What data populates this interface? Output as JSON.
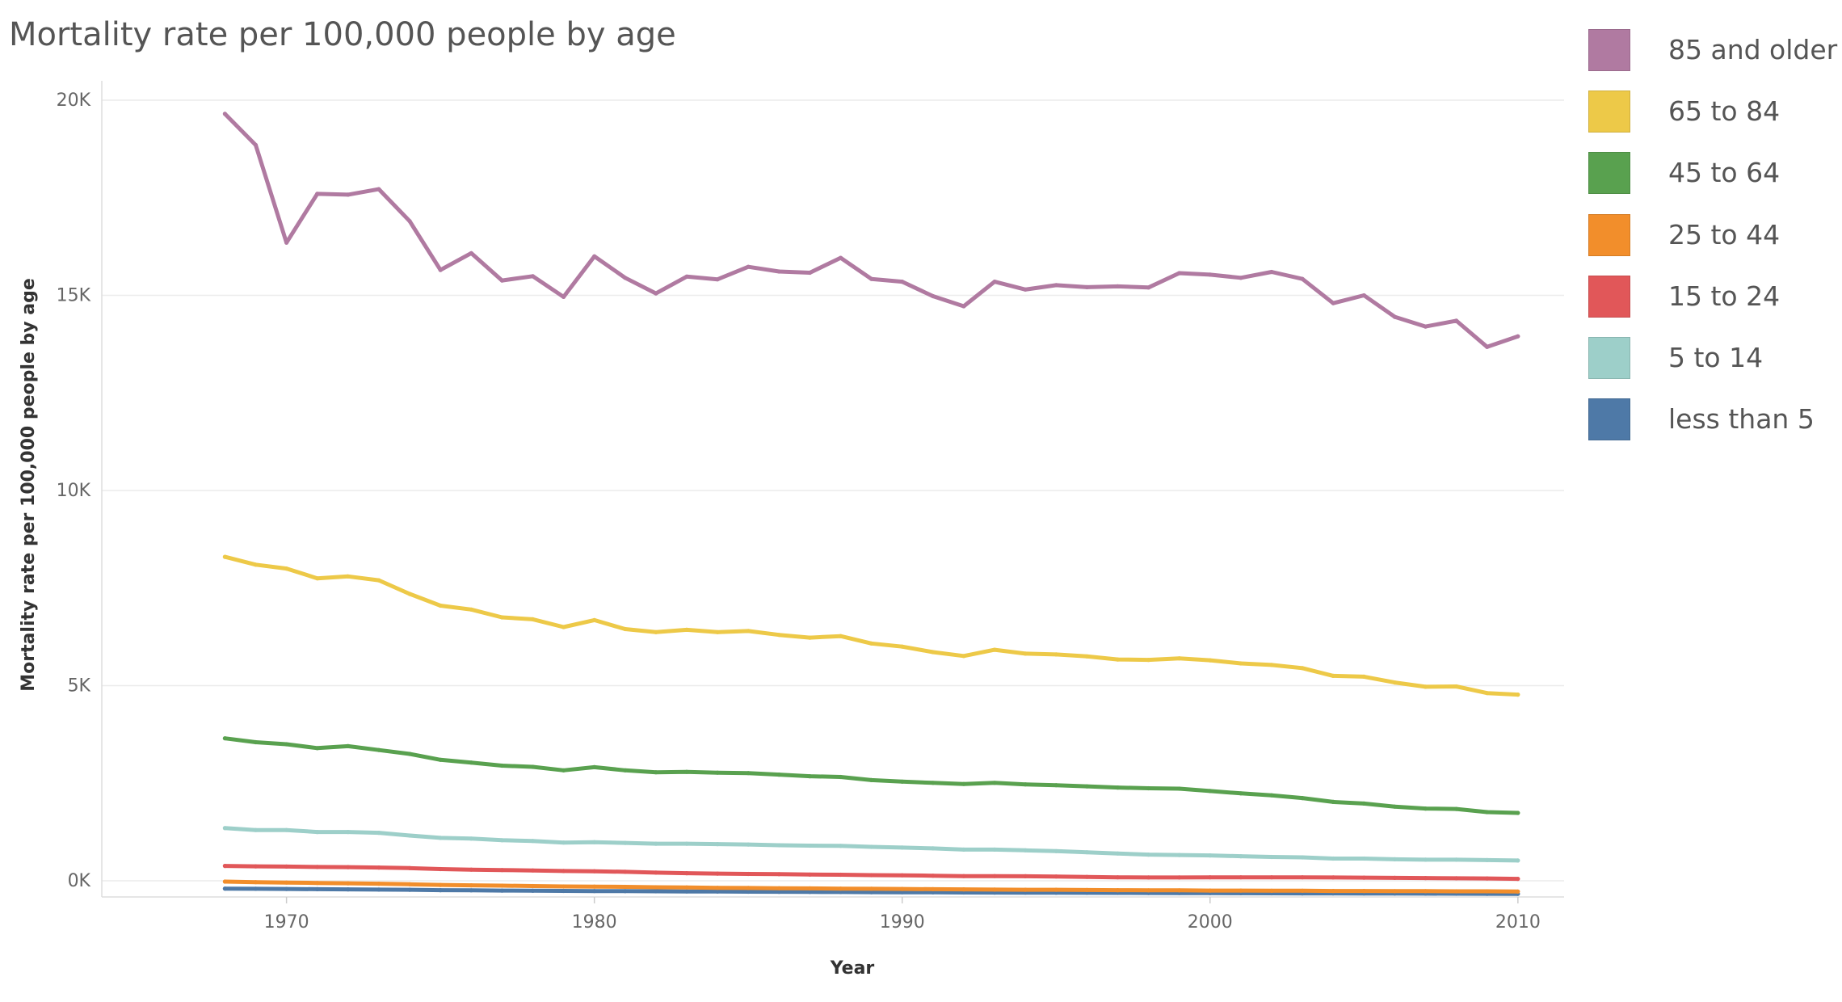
{
  "colors": {
    "85 and older": "#b07aa1",
    "65 to 84": "#edc948",
    "45 to 64": "#59a14f",
    "25 to 44": "#f28e2b",
    "15 to 24": "#e15759",
    "5 to 14": "#9dcfc9",
    "less than 5": "#4e79a7"
  },
  "legend": {
    "items": [
      {
        "label": "85 and older",
        "color": "#b07aa1"
      },
      {
        "label": "65 to 84",
        "color": "#edc948"
      },
      {
        "label": "45 to 64",
        "color": "#59a14f"
      },
      {
        "label": "25 to 44",
        "color": "#f28e2b"
      },
      {
        "label": "15 to 24",
        "color": "#e15759"
      },
      {
        "label": "5 to 14",
        "color": "#9dcfc9"
      },
      {
        "label": "less than 5",
        "color": "#4e79a7"
      }
    ]
  },
  "chart_data": {
    "type": "line",
    "title": "Mortality rate per 100,000 people by age",
    "xlabel": "Year",
    "ylabel": "Mortality rate per 100,000 people by age",
    "xlim": [
      1964,
      2011.5
    ],
    "ylim": [
      -400,
      20000
    ],
    "x_ticks": [
      1970,
      1980,
      1990,
      2000,
      2010
    ],
    "x_tick_labels": [
      "1970",
      "1980",
      "1990",
      "2000",
      "2010"
    ],
    "y_ticks": [
      0,
      5000,
      10000,
      15000,
      20000
    ],
    "y_tick_labels": [
      "0K",
      "5K",
      "10K",
      "15K",
      "20K"
    ],
    "grid": true,
    "legend_position": "right",
    "x": [
      1968,
      1969,
      1970,
      1971,
      1972,
      1973,
      1974,
      1975,
      1976,
      1977,
      1978,
      1979,
      1980,
      1981,
      1982,
      1983,
      1984,
      1985,
      1986,
      1987,
      1988,
      1989,
      1990,
      1991,
      1992,
      1993,
      1994,
      1995,
      1996,
      1997,
      1998,
      1999,
      2000,
      2001,
      2002,
      2003,
      2004,
      2005,
      2006,
      2007,
      2008,
      2009,
      2010
    ],
    "series": [
      {
        "name": "85 and older",
        "values": [
          19650,
          18850,
          16350,
          17600,
          17580,
          17720,
          16900,
          15650,
          16080,
          15380,
          15490,
          14960,
          16000,
          15450,
          15050,
          15480,
          15410,
          15730,
          15610,
          15580,
          15960,
          15420,
          15350,
          14980,
          14720,
          15350,
          15150,
          15260,
          15210,
          15230,
          15200,
          15570,
          15530,
          15450,
          15600,
          15420,
          14800,
          15000,
          14450,
          14200,
          14350,
          13680,
          13950
        ]
      },
      {
        "name": "65 to 84",
        "values": [
          8300,
          8100,
          8000,
          7750,
          7800,
          7700,
          7350,
          7050,
          6950,
          6750,
          6700,
          6500,
          6680,
          6450,
          6370,
          6430,
          6370,
          6400,
          6300,
          6230,
          6270,
          6080,
          6000,
          5860,
          5760,
          5920,
          5820,
          5800,
          5750,
          5670,
          5660,
          5700,
          5650,
          5570,
          5530,
          5450,
          5250,
          5230,
          5080,
          4970,
          4980,
          4810,
          4770
        ]
      },
      {
        "name": "45 to 64",
        "values": [
          3650,
          3550,
          3500,
          3400,
          3450,
          3350,
          3250,
          3100,
          3030,
          2950,
          2920,
          2830,
          2910,
          2830,
          2780,
          2790,
          2770,
          2760,
          2720,
          2680,
          2660,
          2580,
          2540,
          2510,
          2480,
          2510,
          2470,
          2450,
          2420,
          2390,
          2370,
          2360,
          2300,
          2240,
          2190,
          2120,
          2020,
          1980,
          1900,
          1850,
          1840,
          1760,
          1740
        ]
      },
      {
        "name": "25 to 44",
        "values": [
          -20,
          -35,
          -45,
          -55,
          -65,
          -75,
          -90,
          -105,
          -115,
          -125,
          -135,
          -145,
          -150,
          -155,
          -165,
          -170,
          -180,
          -185,
          -190,
          -195,
          -200,
          -205,
          -210,
          -215,
          -220,
          -225,
          -230,
          -230,
          -235,
          -240,
          -245,
          -245,
          -250,
          -250,
          -255,
          -255,
          -260,
          -260,
          -265,
          -265,
          -270,
          -270,
          -275
        ]
      },
      {
        "name": "15 to 24",
        "values": [
          380,
          370,
          365,
          355,
          350,
          340,
          325,
          300,
          285,
          275,
          265,
          250,
          245,
          230,
          210,
          195,
          185,
          175,
          170,
          160,
          155,
          145,
          140,
          130,
          120,
          120,
          115,
          110,
          100,
          90,
          85,
          85,
          90,
          90,
          90,
          90,
          85,
          80,
          75,
          70,
          65,
          60,
          50
        ]
      },
      {
        "name": "5 to 14",
        "values": [
          1350,
          1300,
          1300,
          1250,
          1250,
          1230,
          1160,
          1100,
          1080,
          1040,
          1020,
          980,
          990,
          970,
          950,
          950,
          940,
          930,
          910,
          900,
          895,
          870,
          850,
          830,
          800,
          800,
          780,
          760,
          730,
          700,
          670,
          660,
          650,
          630,
          610,
          600,
          570,
          570,
          550,
          540,
          540,
          530,
          520
        ]
      },
      {
        "name": "less than 5",
        "values": [
          -200,
          -205,
          -210,
          -215,
          -220,
          -225,
          -230,
          -240,
          -245,
          -250,
          -255,
          -258,
          -262,
          -266,
          -270,
          -273,
          -276,
          -279,
          -282,
          -285,
          -288,
          -291,
          -294,
          -297,
          -300,
          -302,
          -304,
          -306,
          -308,
          -310,
          -312,
          -314,
          -316,
          -318,
          -320,
          -322,
          -324,
          -326,
          -328,
          -330,
          -332,
          -334,
          -336
        ]
      }
    ]
  }
}
